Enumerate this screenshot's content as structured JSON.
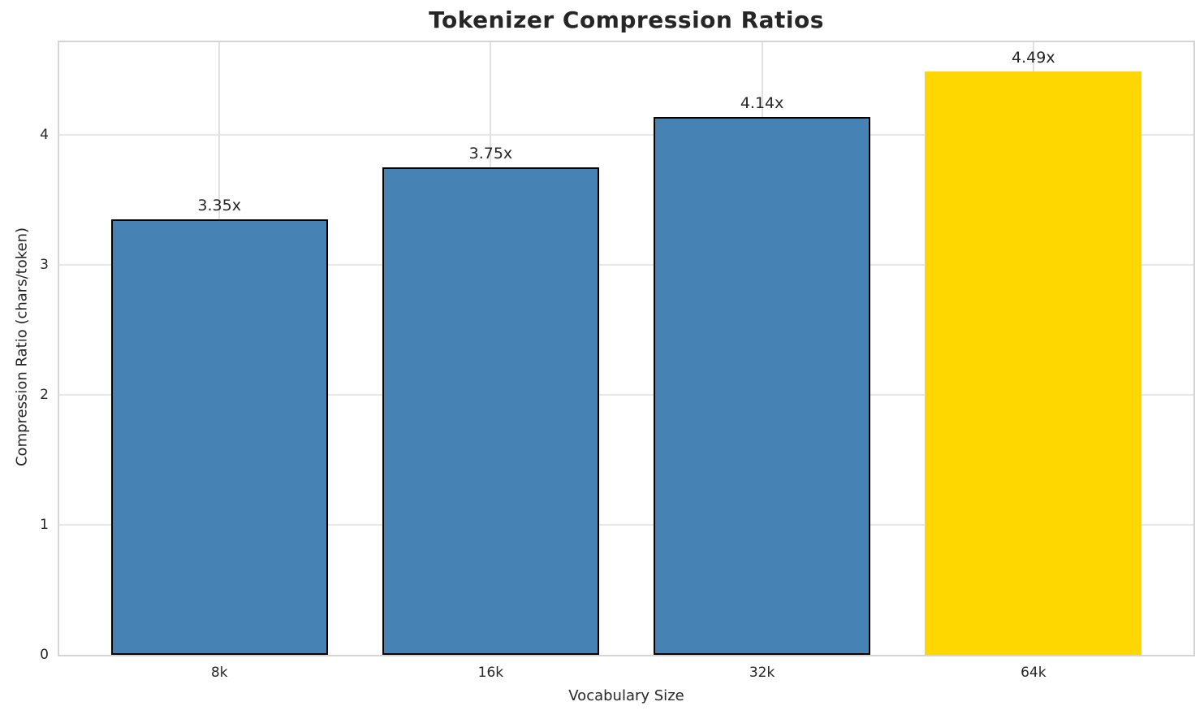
{
  "chart_data": {
    "type": "bar",
    "title": "Tokenizer Compression Ratios",
    "xlabel": "Vocabulary Size",
    "ylabel": "Compression Ratio (chars/token)",
    "categories": [
      "8k",
      "16k",
      "32k",
      "64k"
    ],
    "values": [
      3.35,
      3.75,
      4.14,
      4.49
    ],
    "bar_labels": [
      "3.35x",
      "3.75x",
      "4.14x",
      "4.49x"
    ],
    "bar_colors": [
      "#4682b4",
      "#4682b4",
      "#4682b4",
      "#ffd700"
    ],
    "bar_edge_colors": [
      "#000000",
      "#000000",
      "#000000",
      "none"
    ],
    "highlight_index": 3,
    "yticks": [
      0,
      1,
      2,
      3,
      4
    ],
    "ylim": [
      0,
      4.7125
    ],
    "grid": true,
    "legend": null,
    "background_color": "#ffffff",
    "text_color": "#262626",
    "grid_color": "#e7e7e7",
    "spine_color": "#d4d4d4"
  }
}
